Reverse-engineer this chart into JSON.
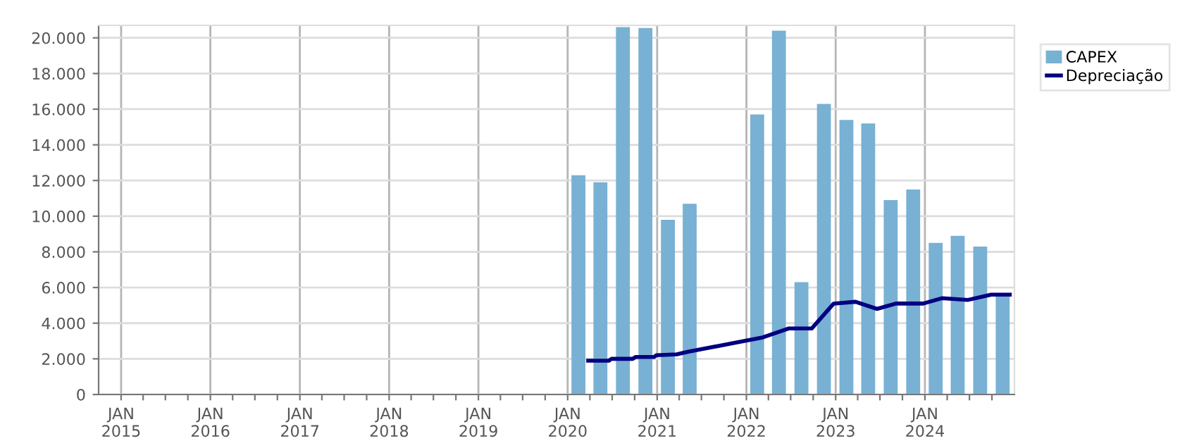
{
  "chart_data": {
    "type": "bar",
    "xlim": [
      "2014-10-01",
      "2025-01-01"
    ],
    "xticks": [
      {
        "value": "2015-01-01",
        "label": "JAN\n2015"
      },
      {
        "value": "2015-04-01",
        "label": null
      },
      {
        "value": "2015-07-01",
        "label": null
      },
      {
        "value": "2015-10-01",
        "label": null
      },
      {
        "value": "2016-01-01",
        "label": "JAN\n2016"
      },
      {
        "value": "2016-04-01",
        "label": null
      },
      {
        "value": "2016-07-01",
        "label": null
      },
      {
        "value": "2016-10-01",
        "label": null
      },
      {
        "value": "2017-01-01",
        "label": "JAN\n2017"
      },
      {
        "value": "2017-04-01",
        "label": null
      },
      {
        "value": "2017-07-01",
        "label": null
      },
      {
        "value": "2017-10-01",
        "label": null
      },
      {
        "value": "2018-01-01",
        "label": "JAN\n2018"
      },
      {
        "value": "2018-04-01",
        "label": null
      },
      {
        "value": "2018-07-01",
        "label": null
      },
      {
        "value": "2018-10-01",
        "label": null
      },
      {
        "value": "2019-01-01",
        "label": "JAN\n2019"
      },
      {
        "value": "2019-04-01",
        "label": null
      },
      {
        "value": "2019-07-01",
        "label": null
      },
      {
        "value": "2019-10-01",
        "label": null
      },
      {
        "value": "2020-01-01",
        "label": "JAN\n2020"
      },
      {
        "value": "2020-04-01",
        "label": null
      },
      {
        "value": "2020-07-01",
        "label": null
      },
      {
        "value": "2020-10-01",
        "label": null
      },
      {
        "value": "2021-01-01",
        "label": "JAN\n2021"
      },
      {
        "value": "2021-04-01",
        "label": null
      },
      {
        "value": "2021-07-01",
        "label": null
      },
      {
        "value": "2021-10-01",
        "label": null
      },
      {
        "value": "2022-01-01",
        "label": "JAN\n2022"
      },
      {
        "value": "2022-04-01",
        "label": null
      },
      {
        "value": "2022-07-01",
        "label": null
      },
      {
        "value": "2022-10-01",
        "label": null
      },
      {
        "value": "2023-01-01",
        "label": "JAN\n2023"
      },
      {
        "value": "2023-04-01",
        "label": null
      },
      {
        "value": "2023-07-01",
        "label": null
      },
      {
        "value": "2023-10-01",
        "label": null
      },
      {
        "value": "2024-01-01",
        "label": "JAN\n2024"
      },
      {
        "value": "2024-04-01",
        "label": null
      },
      {
        "value": "2024-07-01",
        "label": null
      },
      {
        "value": "2024-10-01",
        "label": null
      }
    ],
    "ylim": [
      0,
      20700
    ],
    "yticks": [
      {
        "value": 0,
        "label": "0"
      },
      {
        "value": 2000,
        "label": "2.000"
      },
      {
        "value": 4000,
        "label": "4.000"
      },
      {
        "value": 6000,
        "label": "6.000"
      },
      {
        "value": 8000,
        "label": "8.000"
      },
      {
        "value": 10000,
        "label": "10.000"
      },
      {
        "value": 12000,
        "label": "12.000"
      },
      {
        "value": 14000,
        "label": "14.000"
      },
      {
        "value": 16000,
        "label": "16.000"
      },
      {
        "value": 18000,
        "label": "18.000"
      },
      {
        "value": 20000,
        "label": "20.000"
      }
    ],
    "grid": true,
    "legend": "top right",
    "series": [
      {
        "name": "CAPEX",
        "color": "#78b1d3",
        "x": [
          "2020-02-14",
          "2020-05-14",
          "2020-08-14",
          "2020-11-14",
          "2021-02-14",
          "2021-05-14",
          "2022-02-14",
          "2022-05-14",
          "2022-08-14",
          "2022-11-14",
          "2023-02-14",
          "2023-05-14",
          "2023-08-14",
          "2023-11-14",
          "2024-02-14",
          "2024-05-14",
          "2024-08-14",
          "2024-11-14"
        ],
        "values": [
          12300,
          11900,
          20600,
          20550,
          9800,
          10700,
          15700,
          20400,
          6300,
          16300,
          15400,
          15200,
          10900,
          11500,
          8500,
          8900,
          8300,
          5600
        ]
      },
      {
        "name": "Depreciação",
        "type": "line",
        "color": "#000080",
        "marker": "none",
        "line_style": "solid",
        "x": [
          "2020-03-25",
          "2020-06-18",
          "2020-06-28",
          "2020-09-23",
          "2020-10-04",
          "2020-12-19",
          "2020-12-28",
          "2021-03-22",
          "2021-05-08",
          "2021-11-16",
          "2022-03-09",
          "2022-06-22",
          "2022-09-25",
          "2022-12-24",
          "2023-03-23",
          "2023-06-19",
          "2023-09-04",
          "2023-12-25",
          "2024-03-10",
          "2024-06-23",
          "2024-09-28",
          "2024-12-13"
        ],
        "values": [
          1900,
          1900,
          2000,
          2000,
          2100,
          2100,
          2200,
          2250,
          2400,
          2900,
          3200,
          3700,
          3700,
          5100,
          5200,
          4800,
          5100,
          5100,
          5400,
          5300,
          5600,
          5600
        ]
      }
    ]
  }
}
